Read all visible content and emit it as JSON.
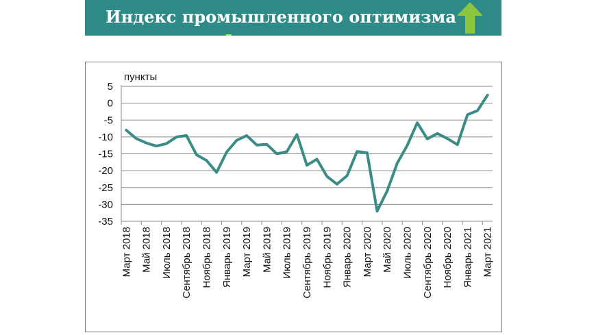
{
  "header": {
    "title": "Индекс промышленного оптимизма",
    "trend_icon": "up-arrow-icon",
    "background_color": "#2e8a86",
    "arrow_color": "#8cc63f"
  },
  "chart_data": {
    "type": "line",
    "ylabel": "пункты",
    "ylim": [
      -35,
      5
    ],
    "yticks": [
      5,
      0,
      -5,
      -10,
      -15,
      -20,
      -25,
      -30,
      -35
    ],
    "grid": true,
    "line_color": "#3b8c86",
    "x_tick_labels": [
      "Март 2018",
      "Май 2018",
      "Июль 2018",
      "Сентябрь 2018",
      "Ноябрь 2018",
      "Январь 2019",
      "Март 2019",
      "Май 2019",
      "Июль 2019",
      "Сентябрь 2019",
      "Ноябрь 2019",
      "Январь 2020",
      "Март 2020",
      "Май 2020",
      "Июль 2020",
      "Сентябрь 2020",
      "Ноябрь 2020",
      "Январь 2021",
      "Март 2021"
    ],
    "x": [
      "Март 2018",
      "Апрель 2018",
      "Май 2018",
      "Июнь 2018",
      "Июль 2018",
      "Август 2018",
      "Сентябрь 2018",
      "Октябрь 2018",
      "Ноябрь 2018",
      "Декабрь 2018",
      "Январь 2019",
      "Февраль 2019",
      "Март 2019",
      "Апрель 2019",
      "Май 2019",
      "Июнь 2019",
      "Июль 2019",
      "Август 2019",
      "Сентябрь 2019",
      "Октябрь 2019",
      "Ноябрь 2019",
      "Декабрь 2019",
      "Январь 2020",
      "Февраль 2020",
      "Март 2020",
      "Апрель 2020",
      "Май 2020",
      "Июнь 2020",
      "Июль 2020",
      "Август 2020",
      "Сентябрь 2020",
      "Октябрь 2020",
      "Ноябрь 2020",
      "Декабрь 2020",
      "Январь 2021",
      "Февраль 2021",
      "Март 2021"
    ],
    "values": [
      -8,
      -10.5,
      -11.8,
      -12.7,
      -12,
      -10,
      -9.6,
      -15.3,
      -17,
      -20.5,
      -14.5,
      -11,
      -9.6,
      -12.4,
      -12.2,
      -15,
      -14.4,
      -9.3,
      -18.4,
      -16.6,
      -21.7,
      -24,
      -21.5,
      -14.3,
      -14.7,
      -32,
      -26,
      -17.8,
      -12.5,
      -5.8,
      -10.6,
      -9,
      -10.5,
      -12.3,
      -3.4,
      -2.2,
      2.4
    ]
  }
}
